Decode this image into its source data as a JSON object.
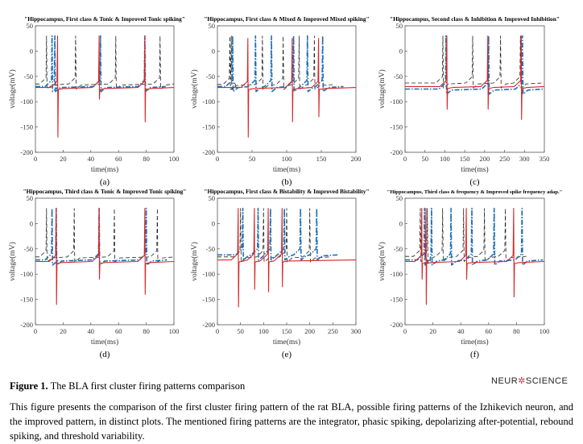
{
  "figure": {
    "label": "Figure 1.",
    "title": "The BLA first cluster firing patterns comparison",
    "description": "This figure presents the comparison of the first cluster firing pattern of the rat BLA, possible firing patterns of the Izhikevich neuron, and the improved pattern, in distinct plots. The mentioned firing patterns are the integrator, phasic spiking, depolarizing after-potential, rebound spiking, and threshold variability.",
    "logo_left": "NEUR",
    "logo_dot": "✲",
    "logo_right": "SCIENCE"
  },
  "colors": {
    "red": "#d62728",
    "blue": "#1f6fb4",
    "black": "#222222"
  },
  "chart_data": [
    {
      "type": "line",
      "panel_label": "(a)",
      "title": "\"Hippocampus, First class & Tonic & Improved Tonic spiking\"",
      "xlabel": "time(ms)",
      "ylabel": "voltage(mV)",
      "xlim": [
        0,
        100
      ],
      "ylim": [
        -200,
        50
      ],
      "xticks": [
        0,
        20,
        40,
        60,
        80,
        100
      ],
      "yticks": [
        -200,
        -150,
        -100,
        -50,
        0,
        50
      ],
      "series": [
        {
          "color": "red",
          "dash": "solid",
          "rest": -72,
          "spikes": [
            {
              "x": 16,
              "peak": 30
            },
            {
              "x": 46,
              "peak": 30
            },
            {
              "x": 79,
              "peak": 30
            }
          ],
          "troughs": [
            {
              "x": 16,
              "v": -170
            },
            {
              "x": 46,
              "v": -95
            },
            {
              "x": 79,
              "v": -140
            }
          ]
        },
        {
          "color": "blue",
          "dash": "dashdot",
          "rest": -70,
          "spikes": [
            {
              "x": 12,
              "peak": 30
            },
            {
              "x": 14,
              "peak": 30
            },
            {
              "x": 47,
              "peak": 30
            },
            {
              "x": 79,
              "peak": 30
            }
          ]
        },
        {
          "color": "black",
          "dash": "dashed",
          "rest": -65,
          "spikes": [
            {
              "x": 8,
              "peak": 30
            },
            {
              "x": 29,
              "peak": 30
            },
            {
              "x": 58,
              "peak": 30
            },
            {
              "x": 90,
              "peak": 30
            }
          ]
        }
      ]
    },
    {
      "type": "line",
      "panel_label": "(b)",
      "title": "\"Hippocampus, First class & Mixed & Improved Mixed spiking\"",
      "xlabel": "time(ms)",
      "ylabel": "voltage(mV)",
      "xlim": [
        0,
        200
      ],
      "ylim": [
        -200,
        50
      ],
      "xticks": [
        0,
        50,
        100,
        150,
        200
      ],
      "yticks": [
        -200,
        -150,
        -100,
        -50,
        0,
        50
      ],
      "series": [
        {
          "color": "red",
          "dash": "solid",
          "rest": -72,
          "spikes": [
            {
              "x": 44,
              "peak": 25
            },
            {
              "x": 108,
              "peak": 25
            },
            {
              "x": 146,
              "peak": 25
            }
          ],
          "troughs": [
            {
              "x": 44,
              "v": -170
            },
            {
              "x": 108,
              "v": -140
            },
            {
              "x": 146,
              "v": -130
            }
          ]
        },
        {
          "color": "blue",
          "dash": "dashdot",
          "rest": -70,
          "spikes": [
            {
              "x": 22,
              "peak": 30
            },
            {
              "x": 55,
              "peak": 30
            },
            {
              "x": 78,
              "peak": 30
            },
            {
              "x": 110,
              "peak": 30
            },
            {
              "x": 130,
              "peak": 30
            },
            {
              "x": 152,
              "peak": 30
            }
          ]
        },
        {
          "color": "black",
          "dash": "dashed",
          "rest": -66,
          "spikes": [
            {
              "x": 18,
              "peak": 30
            },
            {
              "x": 20,
              "peak": 30
            },
            {
              "x": 65,
              "peak": 30
            },
            {
              "x": 95,
              "peak": 30
            },
            {
              "x": 118,
              "peak": 30
            },
            {
              "x": 140,
              "peak": 30
            }
          ]
        }
      ]
    },
    {
      "type": "line",
      "panel_label": "(c)",
      "title": "\"Hippocampus, Second class & Inhibition & Improved Inhibition\"",
      "xlabel": "time(ms)",
      "ylabel": "voltage(mV)",
      "xlim": [
        0,
        350
      ],
      "ylim": [
        -200,
        50
      ],
      "xticks": [
        0,
        50,
        100,
        150,
        200,
        250,
        300,
        350
      ],
      "yticks": [
        -200,
        -150,
        -100,
        -50,
        0,
        50
      ],
      "series": [
        {
          "color": "red",
          "dash": "solid",
          "rest": -70,
          "spikes": [
            {
              "x": 105,
              "peak": 30
            },
            {
              "x": 208,
              "peak": 30
            },
            {
              "x": 292,
              "peak": 30
            }
          ],
          "troughs": [
            {
              "x": 105,
              "v": -115
            },
            {
              "x": 208,
              "v": -115
            },
            {
              "x": 292,
              "v": -135
            }
          ]
        },
        {
          "color": "blue",
          "dash": "dashdot",
          "rest": -75,
          "spikes": [
            {
              "x": 103,
              "peak": 30
            },
            {
              "x": 210,
              "peak": 30
            },
            {
              "x": 295,
              "peak": 30
            }
          ]
        },
        {
          "color": "black",
          "dash": "dashed",
          "rest": -63,
          "spikes": [
            {
              "x": 95,
              "peak": 30
            },
            {
              "x": 170,
              "peak": 30
            },
            {
              "x": 240,
              "peak": 30
            },
            {
              "x": 290,
              "peak": 30
            }
          ]
        }
      ]
    },
    {
      "type": "line",
      "panel_label": "(d)",
      "title": "\"Hippocampus, Third class & Tonic & Improved Tonic spiking\"",
      "xlabel": "time(ms)",
      "ylabel": "voltage(mV)",
      "xlim": [
        0,
        100
      ],
      "ylim": [
        -200,
        50
      ],
      "xticks": [
        0,
        20,
        40,
        60,
        80,
        100
      ],
      "yticks": [
        -200,
        -150,
        -100,
        -50,
        0,
        50
      ],
      "series": [
        {
          "color": "red",
          "dash": "solid",
          "rest": -75,
          "spikes": [
            {
              "x": 15,
              "peak": 30
            },
            {
              "x": 46,
              "peak": 30
            },
            {
              "x": 79,
              "peak": 30
            }
          ],
          "troughs": [
            {
              "x": 15,
              "v": -160
            },
            {
              "x": 46,
              "v": -110
            },
            {
              "x": 79,
              "v": -140
            }
          ]
        },
        {
          "color": "blue",
          "dash": "dashdot",
          "rest": -72,
          "spikes": [
            {
              "x": 12,
              "peak": 30
            },
            {
              "x": 15,
              "peak": 30
            },
            {
              "x": 46,
              "peak": 30
            },
            {
              "x": 80,
              "peak": 30
            }
          ]
        },
        {
          "color": "black",
          "dash": "dashed",
          "rest": -66,
          "spikes": [
            {
              "x": 8,
              "peak": 30
            },
            {
              "x": 28,
              "peak": 30
            },
            {
              "x": 57,
              "peak": 30
            },
            {
              "x": 88,
              "peak": 30
            }
          ]
        }
      ]
    },
    {
      "type": "line",
      "panel_label": "(e)",
      "title": "\"Hippocampus, First class & Bistability & Improved Bistability\"",
      "xlabel": "time(ms)",
      "ylabel": "voltage(mV)",
      "xlim": [
        0,
        300
      ],
      "ylim": [
        -200,
        50
      ],
      "xticks": [
        0,
        50,
        100,
        150,
        200,
        250,
        300
      ],
      "yticks": [
        -200,
        -150,
        -100,
        -50,
        0,
        50
      ],
      "series": [
        {
          "color": "red",
          "dash": "solid",
          "rest": -72,
          "spikes": [
            {
              "x": 45,
              "peak": 30
            },
            {
              "x": 80,
              "peak": 30
            },
            {
              "x": 110,
              "peak": 30
            },
            {
              "x": 140,
              "peak": 30
            }
          ],
          "troughs": [
            {
              "x": 45,
              "v": -165
            },
            {
              "x": 80,
              "v": -130
            },
            {
              "x": 110,
              "v": -135
            },
            {
              "x": 140,
              "v": -125
            }
          ]
        },
        {
          "color": "blue",
          "dash": "dashdot",
          "rest": -62,
          "spikes": [
            {
              "x": 55,
              "peak": 30
            },
            {
              "x": 88,
              "peak": 30
            },
            {
              "x": 115,
              "peak": 30
            },
            {
              "x": 145,
              "peak": 30
            },
            {
              "x": 180,
              "peak": 30
            },
            {
              "x": 215,
              "peak": 30
            }
          ]
        },
        {
          "color": "black",
          "dash": "dashed",
          "rest": -66,
          "spikes": [
            {
              "x": 50,
              "peak": 30
            },
            {
              "x": 100,
              "peak": 30
            },
            {
              "x": 150,
              "peak": 30
            },
            {
              "x": 200,
              "peak": 30
            }
          ]
        }
      ]
    },
    {
      "type": "line",
      "panel_label": "(f)",
      "title": "\"Hippocampus, Third class & frequency & Improved spike frequency adap.\"",
      "xlabel": "time(ms)",
      "ylabel": "voltage(mV)",
      "xlim": [
        0,
        100
      ],
      "ylim": [
        -200,
        50
      ],
      "xticks": [
        0,
        20,
        40,
        60,
        80,
        100
      ],
      "yticks": [
        -200,
        -150,
        -100,
        -50,
        0,
        50
      ],
      "series": [
        {
          "color": "red",
          "dash": "solid",
          "rest": -75,
          "spikes": [
            {
              "x": 12,
              "peak": 30
            },
            {
              "x": 15,
              "peak": 30
            },
            {
              "x": 44,
              "peak": 30
            },
            {
              "x": 78,
              "peak": 30
            }
          ],
          "troughs": [
            {
              "x": 12,
              "v": -110
            },
            {
              "x": 15,
              "v": -160
            },
            {
              "x": 44,
              "v": -110
            },
            {
              "x": 78,
              "v": -145
            }
          ]
        },
        {
          "color": "blue",
          "dash": "dashdot",
          "rest": -72,
          "spikes": [
            {
              "x": 14,
              "peak": 30
            },
            {
              "x": 19,
              "peak": 30
            },
            {
              "x": 33,
              "peak": 30
            },
            {
              "x": 48,
              "peak": 30
            },
            {
              "x": 64,
              "peak": 30
            },
            {
              "x": 84,
              "peak": 30
            }
          ]
        },
        {
          "color": "black",
          "dash": "dashed",
          "rest": -65,
          "spikes": [
            {
              "x": 11,
              "peak": 30
            },
            {
              "x": 16,
              "peak": 30
            },
            {
              "x": 27,
              "peak": 30
            },
            {
              "x": 42,
              "peak": 30
            },
            {
              "x": 57,
              "peak": 30
            },
            {
              "x": 72,
              "peak": 30
            }
          ]
        }
      ]
    }
  ]
}
